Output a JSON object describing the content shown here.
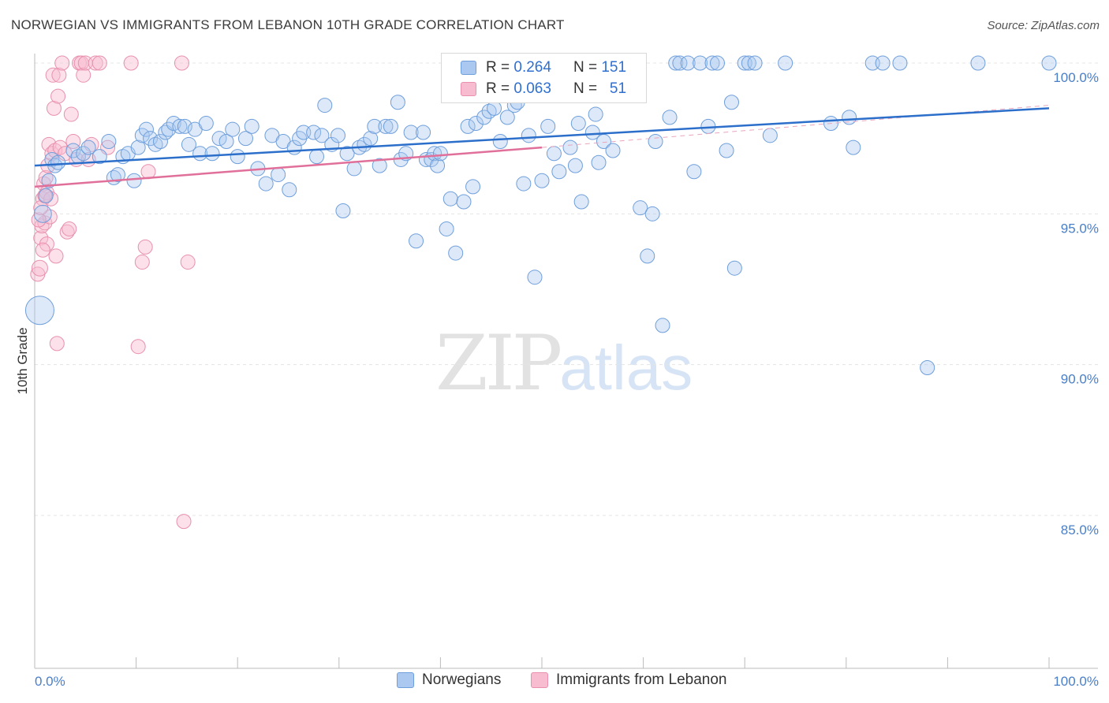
{
  "title": "NORWEGIAN VS IMMIGRANTS FROM LEBANON 10TH GRADE CORRELATION CHART",
  "source": "Source: ZipAtlas.com",
  "watermark": {
    "zip": "ZIP",
    "atlas": "atlas"
  },
  "legend": {
    "row1": {
      "r_label": "R =",
      "r_value": "0.264",
      "n_label": "N =",
      "n_value": "151"
    },
    "row2": {
      "r_label": "R =",
      "r_value": "0.063",
      "n_label": "N =",
      "n_value": "51"
    }
  },
  "bottom_legend": {
    "series1": "Norwegians",
    "series2": "Immigrants from Lebanon"
  },
  "colors": {
    "blue_fill": "#aac8f0",
    "blue_stroke": "#6f9fdb",
    "blue_line": "#2c6fcb",
    "pink_fill": "#f8bcd0",
    "pink_stroke": "#e890ae",
    "pink_line": "#e0709a",
    "tick_text": "#4a7fc8"
  },
  "chart_data": {
    "type": "scatter",
    "title": "NORWEGIAN VS IMMIGRANTS FROM LEBANON 10TH GRADE CORRELATION CHART",
    "xlabel": "",
    "ylabel": "10th Grade",
    "xlim": [
      0,
      100
    ],
    "ylim": [
      80.5,
      100.8
    ],
    "x_tick_labels": [
      "0.0%",
      "100.0%"
    ],
    "y_ticks": [
      85,
      90,
      95,
      100
    ],
    "y_tick_labels": [
      "85.0%",
      "90.0%",
      "95.0%",
      "100.0%"
    ],
    "grid": true,
    "legend_position": "top-center",
    "series": [
      {
        "name": "Norwegians",
        "r": 0.264,
        "n": 151,
        "trend": {
          "x": [
            0,
            100
          ],
          "y": [
            96.6,
            98.5
          ]
        },
        "points": [
          [
            0.5,
            91.8,
            18
          ],
          [
            0.8,
            95.0,
            11
          ],
          [
            1.1,
            95.6,
            9
          ],
          [
            1.4,
            96.1,
            9
          ],
          [
            1.7,
            96.8,
            9
          ],
          [
            2.0,
            96.6,
            9
          ],
          [
            2.3,
            96.7,
            9
          ],
          [
            3.8,
            97.1,
            9
          ],
          [
            4.3,
            96.9,
            9
          ],
          [
            4.8,
            97.0,
            9
          ],
          [
            5.3,
            97.2,
            9
          ],
          [
            6.4,
            96.9,
            9
          ],
          [
            7.3,
            97.4,
            9
          ],
          [
            7.8,
            96.2,
            9
          ],
          [
            8.2,
            96.3,
            9
          ],
          [
            8.7,
            96.9,
            9
          ],
          [
            9.2,
            97.0,
            9
          ],
          [
            9.8,
            96.1,
            9
          ],
          [
            10.2,
            97.2,
            9
          ],
          [
            10.6,
            97.6,
            9
          ],
          [
            11.0,
            97.8,
            9
          ],
          [
            11.4,
            97.5,
            9
          ],
          [
            11.9,
            97.3,
            9
          ],
          [
            12.4,
            97.4,
            9
          ],
          [
            12.9,
            97.7,
            9
          ],
          [
            13.2,
            97.8,
            9
          ],
          [
            13.7,
            98.0,
            9
          ],
          [
            14.3,
            97.9,
            9
          ],
          [
            14.8,
            97.9,
            9
          ],
          [
            15.2,
            97.3,
            9
          ],
          [
            15.8,
            97.8,
            9
          ],
          [
            16.3,
            97.0,
            9
          ],
          [
            16.9,
            98.0,
            9
          ],
          [
            17.5,
            97.0,
            9
          ],
          [
            18.2,
            97.5,
            9
          ],
          [
            18.9,
            97.4,
            9
          ],
          [
            19.5,
            97.8,
            9
          ],
          [
            20.0,
            96.9,
            9
          ],
          [
            20.8,
            97.5,
            9
          ],
          [
            21.4,
            97.9,
            9
          ],
          [
            22.0,
            96.5,
            9
          ],
          [
            22.8,
            96.0,
            9
          ],
          [
            23.4,
            97.6,
            9
          ],
          [
            24.0,
            96.3,
            9
          ],
          [
            24.5,
            97.4,
            9
          ],
          [
            25.1,
            95.8,
            9
          ],
          [
            25.6,
            97.2,
            9
          ],
          [
            26.1,
            97.5,
            9
          ],
          [
            26.5,
            97.7,
            9
          ],
          [
            27.5,
            97.7,
            9
          ],
          [
            27.8,
            96.9,
            9
          ],
          [
            28.3,
            97.6,
            9
          ],
          [
            28.6,
            98.6,
            9
          ],
          [
            29.3,
            97.3,
            9
          ],
          [
            29.9,
            97.6,
            9
          ],
          [
            30.4,
            95.1,
            9
          ],
          [
            30.8,
            97.0,
            9
          ],
          [
            31.5,
            96.5,
            9
          ],
          [
            32.0,
            97.2,
            9
          ],
          [
            32.5,
            97.3,
            9
          ],
          [
            33.1,
            97.5,
            9
          ],
          [
            33.5,
            97.9,
            9
          ],
          [
            34.0,
            96.6,
            9
          ],
          [
            34.6,
            97.9,
            9
          ],
          [
            35.1,
            97.9,
            9
          ],
          [
            35.8,
            98.7,
            9
          ],
          [
            36.1,
            96.8,
            9
          ],
          [
            36.6,
            97.0,
            9
          ],
          [
            37.1,
            97.7,
            9
          ],
          [
            37.6,
            94.1,
            9
          ],
          [
            38.3,
            97.7,
            9
          ],
          [
            38.6,
            96.8,
            9
          ],
          [
            39.1,
            96.8,
            9
          ],
          [
            39.4,
            97.0,
            9
          ],
          [
            39.7,
            96.6,
            9
          ],
          [
            40.0,
            97.0,
            9
          ],
          [
            40.6,
            94.5,
            9
          ],
          [
            41.0,
            95.5,
            9
          ],
          [
            41.5,
            93.7,
            9
          ],
          [
            42.3,
            95.4,
            9
          ],
          [
            42.7,
            97.9,
            9
          ],
          [
            43.2,
            95.9,
            9
          ],
          [
            43.5,
            98.0,
            9
          ],
          [
            44.3,
            98.2,
            9
          ],
          [
            44.8,
            98.4,
            9
          ],
          [
            45.3,
            98.5,
            9
          ],
          [
            45.9,
            97.4,
            9
          ],
          [
            46.6,
            98.2,
            9
          ],
          [
            47.3,
            98.6,
            9
          ],
          [
            47.6,
            98.7,
            9
          ],
          [
            48.2,
            96.0,
            9
          ],
          [
            48.7,
            97.6,
            9
          ],
          [
            49.3,
            92.9,
            9
          ],
          [
            50.0,
            96.1,
            9
          ],
          [
            50.6,
            97.9,
            9
          ],
          [
            51.2,
            97.0,
            9
          ],
          [
            51.7,
            96.4,
            9
          ],
          [
            52.2,
            99.8,
            9
          ],
          [
            52.8,
            97.2,
            9
          ],
          [
            53.3,
            96.6,
            9
          ],
          [
            53.6,
            98.0,
            9
          ],
          [
            53.9,
            95.4,
            9
          ],
          [
            55.0,
            97.7,
            9
          ],
          [
            55.3,
            98.3,
            9
          ],
          [
            55.6,
            96.7,
            9
          ],
          [
            56.1,
            97.4,
            9
          ],
          [
            57.0,
            97.1,
            9
          ],
          [
            57.5,
            99.0,
            9
          ],
          [
            58.4,
            99.8,
            9
          ],
          [
            59.7,
            95.2,
            9
          ],
          [
            60.4,
            93.6,
            9
          ],
          [
            60.9,
            95.0,
            9
          ],
          [
            61.2,
            97.4,
            9
          ],
          [
            61.9,
            91.3,
            9
          ],
          [
            62.6,
            98.2,
            9
          ],
          [
            63.2,
            100.0,
            9
          ],
          [
            63.6,
            100.0,
            9
          ],
          [
            64.4,
            100.0,
            9
          ],
          [
            65.0,
            96.4,
            9
          ],
          [
            65.6,
            100.0,
            9
          ],
          [
            66.4,
            97.9,
            9
          ],
          [
            66.8,
            100.0,
            9
          ],
          [
            67.3,
            100.0,
            9
          ],
          [
            68.2,
            97.1,
            9
          ],
          [
            68.7,
            98.7,
            9
          ],
          [
            69.0,
            93.2,
            9
          ],
          [
            70.0,
            100.0,
            9
          ],
          [
            70.4,
            100.0,
            9
          ],
          [
            71.0,
            100.0,
            9
          ],
          [
            72.5,
            97.6,
            9
          ],
          [
            74.0,
            100.0,
            9
          ],
          [
            78.5,
            98.0,
            9
          ],
          [
            80.3,
            98.2,
            9
          ],
          [
            80.7,
            97.2,
            9
          ],
          [
            82.6,
            100.0,
            9
          ],
          [
            83.6,
            100.0,
            9
          ],
          [
            85.3,
            100.0,
            9
          ],
          [
            88.0,
            89.9,
            9
          ],
          [
            93.0,
            100.0,
            9
          ],
          [
            100.0,
            100.0,
            9
          ]
        ]
      },
      {
        "name": "Immigrants from Lebanon",
        "r": 0.063,
        "n": 51,
        "trend": {
          "x": [
            0,
            50
          ],
          "y": [
            95.9,
            97.2
          ]
        },
        "trend_extension": {
          "x": [
            50,
            100
          ],
          "y": [
            97.2,
            98.6
          ]
        },
        "points": [
          [
            0.3,
            93.0,
            9
          ],
          [
            0.5,
            93.2,
            10
          ],
          [
            0.6,
            94.2,
            9
          ],
          [
            0.7,
            94.6,
            9
          ],
          [
            0.8,
            95.5,
            9
          ],
          [
            0.9,
            96.0,
            9
          ],
          [
            1.0,
            94.7,
            9
          ],
          [
            1.1,
            96.2,
            9
          ],
          [
            1.2,
            95.7,
            9
          ],
          [
            1.3,
            96.6,
            9
          ],
          [
            1.4,
            97.3,
            9
          ],
          [
            1.5,
            94.9,
            9
          ],
          [
            1.6,
            95.5,
            9
          ],
          [
            1.7,
            97.0,
            9
          ],
          [
            1.8,
            99.6,
            9
          ],
          [
            1.9,
            98.5,
            9
          ],
          [
            2.0,
            97.1,
            9
          ],
          [
            2.1,
            93.6,
            9
          ],
          [
            2.2,
            90.7,
            9
          ],
          [
            2.3,
            98.9,
            9
          ],
          [
            2.4,
            99.6,
            9
          ],
          [
            2.5,
            97.2,
            9
          ],
          [
            2.7,
            100.0,
            9
          ],
          [
            3.0,
            97.0,
            9
          ],
          [
            3.2,
            94.4,
            9
          ],
          [
            3.4,
            94.5,
            9
          ],
          [
            3.6,
            98.3,
            9
          ],
          [
            3.8,
            97.4,
            9
          ],
          [
            4.1,
            96.8,
            9
          ],
          [
            4.4,
            100.0,
            9
          ],
          [
            4.6,
            100.0,
            9
          ],
          [
            4.8,
            99.6,
            9
          ],
          [
            5.0,
            100.0,
            9
          ],
          [
            5.3,
            96.8,
            9
          ],
          [
            5.6,
            97.3,
            9
          ],
          [
            6.0,
            100.0,
            9
          ],
          [
            6.4,
            100.0,
            9
          ],
          [
            7.2,
            97.2,
            9
          ],
          [
            9.5,
            100.0,
            9
          ],
          [
            10.2,
            90.6,
            9
          ],
          [
            10.6,
            93.4,
            9
          ],
          [
            10.9,
            93.9,
            9
          ],
          [
            11.2,
            96.4,
            9
          ],
          [
            14.5,
            100.0,
            9
          ],
          [
            14.7,
            84.8,
            9
          ],
          [
            15.1,
            93.4,
            9
          ],
          [
            0.4,
            94.8,
            9
          ],
          [
            0.6,
            95.2,
            9
          ],
          [
            1.0,
            95.6,
            9
          ],
          [
            1.2,
            94.0,
            9
          ],
          [
            0.8,
            93.8,
            9
          ]
        ]
      }
    ]
  }
}
